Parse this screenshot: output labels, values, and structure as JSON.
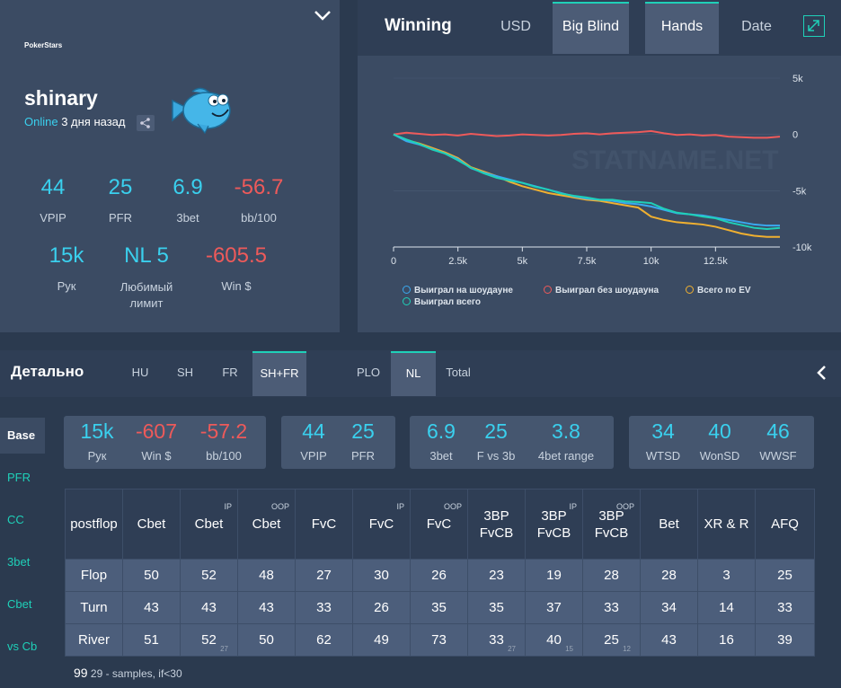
{
  "profile": {
    "site": "PokerStars",
    "name": "shinary",
    "online_label": "Online",
    "online_ago": "3 дня назад",
    "stats": [
      {
        "value": "44",
        "label": "VPIP",
        "color": "#3ad0ee"
      },
      {
        "value": "25",
        "label": "PFR",
        "color": "#3ad0ee"
      },
      {
        "value": "6.9",
        "label": "3bet",
        "color": "#3ad0ee"
      },
      {
        "value": "-56.7",
        "label": "bb/100",
        "color": "#ee5a5a"
      },
      {
        "value": "15k",
        "label": "Рук",
        "color": "#3ad0ee"
      },
      {
        "value": "NL 5",
        "label": "Любимый лимит",
        "color": "#3ad0ee"
      },
      {
        "value": "-605.5",
        "label": "Win $",
        "color": "#ee5a5a"
      }
    ]
  },
  "chart_panel": {
    "title": "Winning",
    "tabs": [
      "USD",
      "Big Blind",
      "Hands",
      "Date"
    ],
    "active_tabs": [
      "Big Blind",
      "Hands"
    ],
    "watermark": "STATNAME.NET"
  },
  "chart_data": {
    "type": "line",
    "xlim": [
      0,
      15000
    ],
    "ylim": [
      -10000,
      5000
    ],
    "x_ticks": [
      "0",
      "2.5k",
      "5k",
      "7.5k",
      "10k",
      "12.5k"
    ],
    "y_ticks": [
      "5k",
      "0",
      "-5k",
      "-10k"
    ],
    "x": [
      0,
      500,
      1000,
      1500,
      2000,
      2500,
      3000,
      3500,
      4000,
      4500,
      5000,
      5500,
      6000,
      6500,
      7000,
      7500,
      8000,
      8500,
      9000,
      9500,
      10000,
      10500,
      11000,
      11500,
      12000,
      12500,
      13000,
      13500,
      14000,
      14500,
      15000
    ],
    "series": [
      {
        "name": "Выиграл на шоудауне",
        "color": "#3aa9f0",
        "values": [
          0,
          -600,
          -900,
          -1300,
          -1700,
          -2200,
          -3000,
          -3400,
          -3700,
          -4000,
          -4300,
          -4600,
          -4900,
          -5200,
          -5500,
          -5700,
          -5800,
          -5900,
          -6100,
          -6200,
          -6400,
          -6700,
          -7000,
          -7100,
          -7200,
          -7400,
          -7600,
          -7800,
          -8000,
          -8100,
          -8100
        ]
      },
      {
        "name": "Выиграл без шоудауна",
        "color": "#ee5a5a",
        "values": [
          0,
          150,
          50,
          -50,
          0,
          -100,
          50,
          -50,
          -150,
          -100,
          0,
          -50,
          -100,
          -50,
          50,
          100,
          0,
          100,
          150,
          200,
          300,
          100,
          -50,
          0,
          -100,
          -50,
          -200,
          -250,
          -300,
          -300,
          -200
        ]
      },
      {
        "name": "Всего по EV",
        "color": "#f0b030",
        "values": [
          0,
          -500,
          -800,
          -1200,
          -1600,
          -2100,
          -2900,
          -3300,
          -3700,
          -4200,
          -4600,
          -4900,
          -5200,
          -5400,
          -5600,
          -5800,
          -5900,
          -6100,
          -6300,
          -6500,
          -7300,
          -7600,
          -7800,
          -7900,
          -8000,
          -8200,
          -8500,
          -8800,
          -9000,
          -9100,
          -9100
        ]
      },
      {
        "name": "Выиграл всего",
        "color": "#1fd0b8",
        "values": [
          0,
          -450,
          -850,
          -1350,
          -1700,
          -2300,
          -2950,
          -3450,
          -3850,
          -4100,
          -4300,
          -4650,
          -4900,
          -5250,
          -5450,
          -5600,
          -5800,
          -5800,
          -5950,
          -6000,
          -6100,
          -6600,
          -6950,
          -7100,
          -7300,
          -7450,
          -7800,
          -8050,
          -8300,
          -8400,
          -8300
        ]
      }
    ]
  },
  "detail": {
    "title": "Детально",
    "tabs_left": [
      "HU",
      "SH",
      "FR",
      "SH+FR"
    ],
    "tabs_right": [
      "PLO",
      "NL",
      "Total"
    ],
    "side_tabs": [
      "Base",
      "PFR",
      "CC",
      "3bet",
      "Cbet",
      "vs Cb"
    ],
    "boxes": [
      [
        {
          "v": "15k",
          "l": "Рук",
          "c": "#3ad0ee"
        },
        {
          "v": "-607",
          "l": "Win $",
          "c": "#ee5a5a"
        },
        {
          "v": "-57.2",
          "l": "bb/100",
          "c": "#ee5a5a"
        }
      ],
      [
        {
          "v": "44",
          "l": "VPIP",
          "c": "#3ad0ee"
        },
        {
          "v": "25",
          "l": "PFR",
          "c": "#3ad0ee"
        }
      ],
      [
        {
          "v": "6.9",
          "l": "3bet",
          "c": "#3ad0ee"
        },
        {
          "v": "25",
          "l": "F vs 3b",
          "c": "#3ad0ee"
        },
        {
          "v": "3.8",
          "l": "4bet range",
          "c": "#3ad0ee"
        }
      ],
      [
        {
          "v": "34",
          "l": "WTSD",
          "c": "#3ad0ee"
        },
        {
          "v": "40",
          "l": "WonSD",
          "c": "#3ad0ee"
        },
        {
          "v": "46",
          "l": "WWSF",
          "c": "#3ad0ee"
        }
      ]
    ],
    "table": {
      "headers": [
        {
          "t": "postflop",
          "sup": ""
        },
        {
          "t": "Cbet",
          "sup": ""
        },
        {
          "t": "Cbet",
          "sup": "IP"
        },
        {
          "t": "Cbet",
          "sup": "OOP"
        },
        {
          "t": "FvC",
          "sup": ""
        },
        {
          "t": "FvC",
          "sup": "IP"
        },
        {
          "t": "FvC",
          "sup": "OOP"
        },
        {
          "t": "3BP FvCB",
          "sup": ""
        },
        {
          "t": "3BP FvCB",
          "sup": "IP"
        },
        {
          "t": "3BP FvCB",
          "sup": "OOP"
        },
        {
          "t": "Bet",
          "sup": ""
        },
        {
          "t": "XR & R",
          "sup": ""
        },
        {
          "t": "AFQ",
          "sup": ""
        }
      ],
      "rows": [
        [
          {
            "v": "Flop"
          },
          {
            "v": "50"
          },
          {
            "v": "52"
          },
          {
            "v": "48"
          },
          {
            "v": "27"
          },
          {
            "v": "30"
          },
          {
            "v": "26"
          },
          {
            "v": "23"
          },
          {
            "v": "19"
          },
          {
            "v": "28"
          },
          {
            "v": "28"
          },
          {
            "v": "3"
          },
          {
            "v": "25"
          }
        ],
        [
          {
            "v": "Turn"
          },
          {
            "v": "43"
          },
          {
            "v": "43"
          },
          {
            "v": "43"
          },
          {
            "v": "33"
          },
          {
            "v": "26"
          },
          {
            "v": "35"
          },
          {
            "v": "35"
          },
          {
            "v": "37"
          },
          {
            "v": "33"
          },
          {
            "v": "34"
          },
          {
            "v": "14"
          },
          {
            "v": "33"
          }
        ],
        [
          {
            "v": "River"
          },
          {
            "v": "51"
          },
          {
            "v": "52",
            "s": "27"
          },
          {
            "v": "50"
          },
          {
            "v": "62"
          },
          {
            "v": "49"
          },
          {
            "v": "73"
          },
          {
            "v": "33",
            "s": "27"
          },
          {
            "v": "40",
            "s": "15"
          },
          {
            "v": "25",
            "s": "12"
          },
          {
            "v": "43"
          },
          {
            "v": "16"
          },
          {
            "v": "39"
          }
        ]
      ]
    },
    "footnote_num": "99",
    "footnote_text": "29 - samples, if<30"
  }
}
